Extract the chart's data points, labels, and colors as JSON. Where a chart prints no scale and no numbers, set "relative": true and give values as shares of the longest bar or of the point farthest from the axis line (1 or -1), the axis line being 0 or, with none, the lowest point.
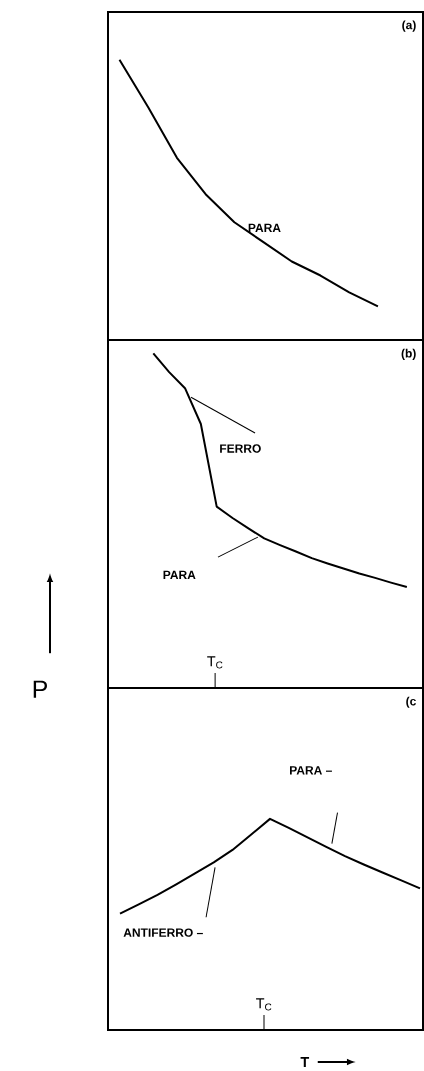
{
  "chart_data": [
    {
      "type": "line",
      "title": "(a)",
      "relative": true,
      "marker": "none",
      "line_style": "solid",
      "color": "#000000",
      "categories": [
        null,
        null,
        null,
        null,
        null,
        null,
        null,
        null,
        null,
        null,
        null
      ],
      "values": [
        1,
        0.83,
        0.65,
        0.52,
        0.42,
        0.35,
        0.28,
        0.23,
        0.17,
        0.12,
        null
      ],
      "annotations": [
        "PARA"
      ]
    },
    {
      "type": "line",
      "title": "(b)",
      "ylabel": "P",
      "relative": true,
      "marker": "none",
      "line_style": "solid",
      "color": "#000000",
      "categories": [
        null,
        null,
        null,
        null,
        null,
        null,
        null,
        null,
        null,
        null,
        null,
        null,
        null,
        null,
        null,
        null,
        null
      ],
      "values": [
        1,
        0.944,
        0.896,
        0.789,
        0.542,
        0.508,
        0.477,
        0.447,
        0.427,
        0.408,
        0.388,
        0.372,
        0.357,
        0.342,
        0.329,
        0.315,
        0.302
      ],
      "annotations": [
        "FERRO",
        "PARA",
        "T$_{C}$"
      ]
    },
    {
      "type": "line",
      "title": "(c",
      "xlabel": "T",
      "relative": true,
      "marker": "none",
      "line_style": "solid",
      "color": "#000000",
      "categories": [
        null,
        null,
        null,
        null,
        null,
        null,
        null,
        null,
        null,
        null,
        null,
        null,
        null,
        null,
        null,
        null,
        null
      ],
      "values": [
        0.551,
        0.595,
        0.64,
        0.69,
        0.742,
        0.794,
        0.853,
        0.926,
        1,
        0.957,
        0.912,
        0.867,
        0.824,
        0.784,
        0.746,
        0.709,
        0.671
      ],
      "annotations": [
        "PARA –",
        "ANTIFERRO –",
        "T$_{C}$"
      ]
    }
  ]
}
